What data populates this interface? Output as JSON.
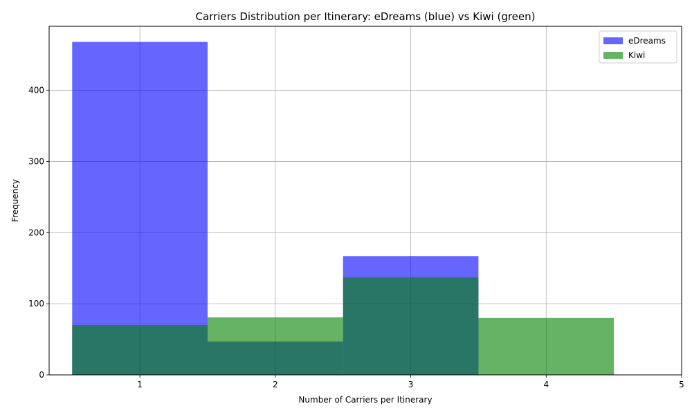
{
  "chart_data": {
    "type": "bar",
    "title": "Carriers Distribution per Itinerary: eDreams (blue) vs Kiwi (green)",
    "xlabel": "Number of Carriers per Itinerary",
    "ylabel": "Frequency",
    "x_ticks": [
      1,
      2,
      3,
      4,
      5
    ],
    "y_ticks": [
      0,
      100,
      200,
      300,
      400
    ],
    "xlim": [
      0.33,
      5.0
    ],
    "ylim": [
      0,
      490
    ],
    "grid": true,
    "legend_position": "top-right",
    "series": [
      {
        "name": "eDreams",
        "color": "#0000ff",
        "opacity": 0.6,
        "bins": [
          [
            0.5,
            1.5
          ],
          [
            1.5,
            2.5
          ],
          [
            2.5,
            3.5
          ]
        ],
        "values": [
          468,
          47,
          167
        ]
      },
      {
        "name": "Kiwi",
        "color": "#008000",
        "opacity": 0.6,
        "bins": [
          [
            0.5,
            1.5
          ],
          [
            1.5,
            2.5
          ],
          [
            2.5,
            3.5
          ],
          [
            3.5,
            4.5
          ]
        ],
        "values": [
          70,
          81,
          137,
          80
        ]
      }
    ]
  }
}
